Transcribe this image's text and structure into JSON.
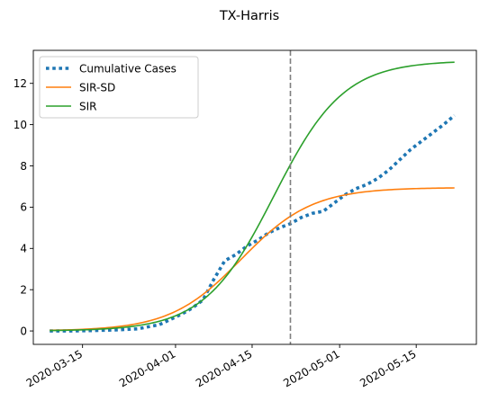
{
  "chart_data": {
    "type": "line",
    "title": "TX-Harris",
    "xlabel": "",
    "ylabel": "",
    "x_axis_type": "date",
    "xlim": [
      "2020-03-06",
      "2020-05-26"
    ],
    "ylim": [
      -0.65,
      13.6
    ],
    "x_ticks": [
      "2020-03-15",
      "2020-04-01",
      "2020-04-15",
      "2020-05-01",
      "2020-05-15"
    ],
    "y_ticks": [
      0,
      2,
      4,
      6,
      8,
      10,
      12
    ],
    "legend_position": "upper-left",
    "grid": false,
    "vertical_line": {
      "x": "2020-04-22",
      "style": "dashed",
      "color": "#7f7f7f"
    },
    "series": [
      {
        "name": "Cumulative Cases",
        "style": "dotted",
        "color": "#1f77b4",
        "points": [
          [
            "2020-03-09",
            0.0
          ],
          [
            "2020-03-13",
            0.0
          ],
          [
            "2020-03-17",
            0.02
          ],
          [
            "2020-03-21",
            0.05
          ],
          [
            "2020-03-25",
            0.1
          ],
          [
            "2020-03-29",
            0.3
          ],
          [
            "2020-04-02",
            0.8
          ],
          [
            "2020-04-04",
            1.1
          ],
          [
            "2020-04-06",
            1.5
          ],
          [
            "2020-04-08",
            2.5
          ],
          [
            "2020-04-10",
            3.4
          ],
          [
            "2020-04-12",
            3.7
          ],
          [
            "2020-04-14",
            4.1
          ],
          [
            "2020-04-16",
            4.4
          ],
          [
            "2020-04-18",
            4.75
          ],
          [
            "2020-04-20",
            5.0
          ],
          [
            "2020-04-22",
            5.2
          ],
          [
            "2020-04-24",
            5.5
          ],
          [
            "2020-04-26",
            5.7
          ],
          [
            "2020-04-28",
            5.8
          ],
          [
            "2020-04-30",
            6.2
          ],
          [
            "2020-05-02",
            6.6
          ],
          [
            "2020-05-04",
            6.9
          ],
          [
            "2020-05-06",
            7.1
          ],
          [
            "2020-05-08",
            7.4
          ],
          [
            "2020-05-10",
            7.8
          ],
          [
            "2020-05-12",
            8.3
          ],
          [
            "2020-05-14",
            8.8
          ],
          [
            "2020-05-16",
            9.2
          ],
          [
            "2020-05-18",
            9.6
          ],
          [
            "2020-05-20",
            10.0
          ],
          [
            "2020-05-22",
            10.45
          ]
        ]
      },
      {
        "name": "SIR-SD",
        "style": "solid",
        "color": "#ff7f0e",
        "logistic": {
          "start": "2020-03-09",
          "end": "2020-05-22",
          "K": 6.95,
          "midpoint": "2020-04-13",
          "rate": 0.1537
        }
      },
      {
        "name": "SIR",
        "style": "solid",
        "color": "#2ca02c",
        "logistic": {
          "start": "2020-03-09",
          "end": "2020-05-22",
          "K": 13.1,
          "midpoint": "2020-04-19",
          "rate": 0.1568
        }
      }
    ]
  }
}
